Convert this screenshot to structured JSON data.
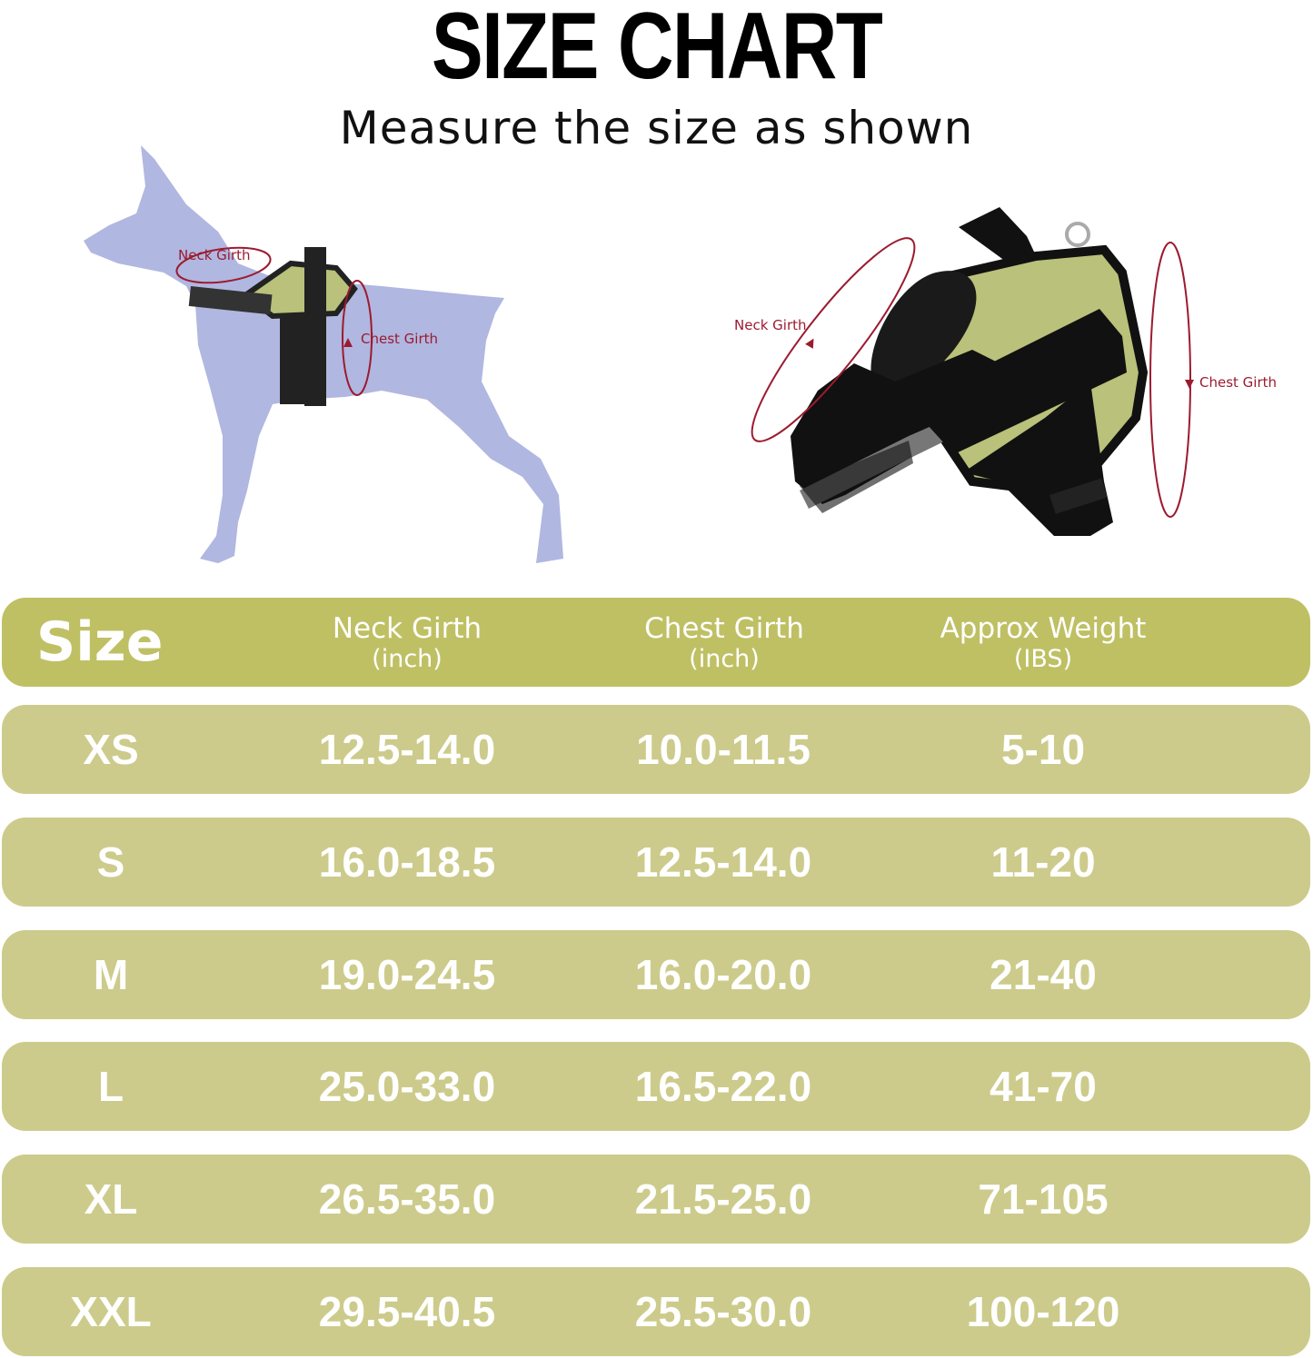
{
  "title": "SIZE CHART",
  "subtitle": "Measure the size as shown",
  "diagram_labels": {
    "dog_neck": "Neck Girth",
    "dog_chest": "Chest Girth",
    "harness_neck": "Neck Girth",
    "harness_chest": "Chest Girth"
  },
  "colors": {
    "header_bg": "#bfc064",
    "row_bg": "#cccb8b",
    "dog": "#b0b7e0",
    "measure_line": "#9b1b30",
    "harness_green": "#b9c17a"
  },
  "table": {
    "headers": [
      {
        "label": "Size"
      },
      {
        "label": "Neck Girth",
        "unit": "(inch)"
      },
      {
        "label": "Chest Girth",
        "unit": "(inch)"
      },
      {
        "label": "Approx Weight",
        "unit": "(IBS)"
      }
    ],
    "rows": [
      [
        "XS",
        "12.5-14.0",
        "10.0-11.5",
        "5-10"
      ],
      [
        "S",
        "16.0-18.5",
        "12.5-14.0",
        "11-20"
      ],
      [
        "M",
        "19.0-24.5",
        "16.0-20.0",
        "21-40"
      ],
      [
        "L",
        "25.0-33.0",
        "16.5-22.0",
        "41-70"
      ],
      [
        "XL",
        "26.5-35.0",
        "21.5-25.0",
        "71-105"
      ],
      [
        "XXL",
        "29.5-40.5",
        "25.5-30.0",
        "100-120"
      ]
    ]
  }
}
